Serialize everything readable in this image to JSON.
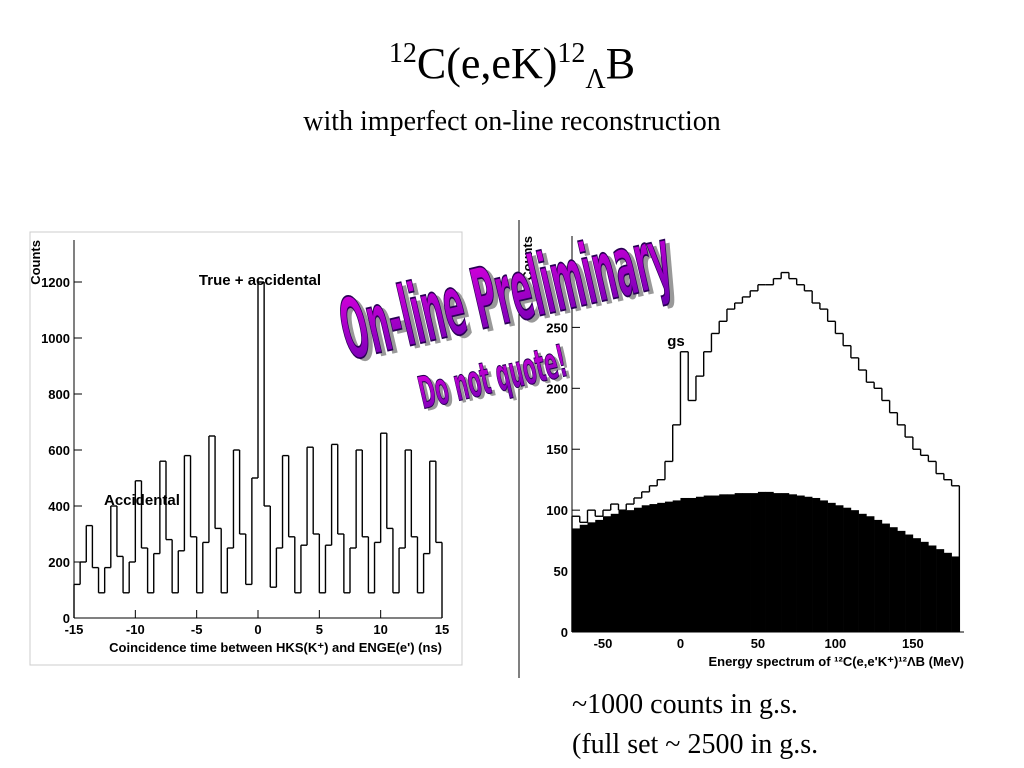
{
  "slide": {
    "title": [
      "12",
      "C(e,eK)",
      "12",
      "Λ",
      "B"
    ],
    "subtitle": "with imperfect on-line reconstruction",
    "watermark": [
      "On-line Preliminary",
      "Do not quote!"
    ],
    "notes": [
      "~1000 counts in g.s.",
      "(full set ~ 2500 in g.s."
    ]
  },
  "chart_data": [
    {
      "type": "histogram",
      "x_label": "Coincidence time between HKS(K⁺) and ENGE(e') (ns)",
      "y_label": "Counts",
      "annotations": [
        "True + accidental",
        "Accidental"
      ],
      "bins": [
        -15,
        -14.5,
        -14,
        -13.5,
        -13,
        -12.5,
        -12,
        -11.5,
        -11,
        -10.5,
        -10,
        -9.5,
        -9,
        -8.5,
        -8,
        -7.5,
        -7,
        -6.5,
        -6,
        -5.5,
        -5,
        -4.5,
        -4,
        -3.5,
        -3,
        -2.5,
        -2,
        -1.5,
        -1,
        -0.5,
        0,
        0.5,
        1,
        1.5,
        2,
        2.5,
        3,
        3.5,
        4,
        4.5,
        5,
        5.5,
        6,
        6.5,
        7,
        7.5,
        8,
        8.5,
        9,
        9.5,
        10,
        10.5,
        11,
        11.5,
        12,
        12.5,
        13,
        13.5,
        14,
        14.5,
        15
      ],
      "series": [
        {
          "color": "#000000",
          "style": "step",
          "values": [
            120,
            200,
            330,
            180,
            90,
            180,
            400,
            220,
            90,
            200,
            490,
            250,
            90,
            230,
            560,
            280,
            90,
            240,
            580,
            290,
            90,
            270,
            650,
            320,
            90,
            250,
            600,
            300,
            120,
            500,
            1200,
            400,
            110,
            250,
            580,
            290,
            90,
            260,
            610,
            300,
            90,
            260,
            620,
            300,
            90,
            250,
            600,
            290,
            90,
            270,
            660,
            320,
            90,
            250,
            600,
            290,
            90,
            230,
            560,
            270
          ]
        }
      ],
      "xlim": [
        -15,
        15
      ],
      "xticks": [
        -15,
        -10,
        -5,
        0,
        5,
        10,
        15
      ],
      "ylim": [
        0,
        1350
      ],
      "yticks": [
        0,
        200,
        400,
        600,
        800,
        1000,
        1200
      ]
    },
    {
      "type": "histogram",
      "x_label": "Energy spectrum of ¹²C(e,e'K⁺)¹²ΛB (MeV)",
      "y_label": "Counts",
      "annotations": [
        "gs"
      ],
      "bins": [
        -70,
        -65,
        -60,
        -55,
        -50,
        -45,
        -40,
        -35,
        -30,
        -25,
        -20,
        -15,
        -10,
        -5,
        0,
        5,
        10,
        15,
        20,
        25,
        30,
        35,
        40,
        45,
        50,
        55,
        60,
        65,
        70,
        75,
        80,
        85,
        90,
        95,
        100,
        105,
        110,
        115,
        120,
        125,
        130,
        135,
        140,
        145,
        150,
        155,
        160,
        165,
        170,
        175,
        180
      ],
      "series": [
        {
          "color": "#000000",
          "style": "filled",
          "values": [
            85,
            88,
            90,
            92,
            95,
            97,
            100,
            100,
            102,
            104,
            105,
            106,
            107,
            108,
            110,
            110,
            111,
            112,
            112,
            113,
            113,
            114,
            114,
            114,
            115,
            115,
            114,
            114,
            113,
            112,
            111,
            110,
            108,
            106,
            104,
            102,
            100,
            97,
            95,
            92,
            89,
            86,
            83,
            80,
            77,
            74,
            71,
            68,
            65,
            62
          ]
        },
        {
          "color": "#000000",
          "style": "step",
          "values": [
            95,
            90,
            100,
            95,
            100,
            105,
            100,
            105,
            110,
            115,
            120,
            125,
            140,
            170,
            230,
            190,
            210,
            230,
            245,
            255,
            265,
            270,
            275,
            280,
            285,
            285,
            290,
            295,
            290,
            285,
            280,
            270,
            265,
            255,
            245,
            235,
            225,
            215,
            205,
            200,
            190,
            180,
            170,
            160,
            150,
            145,
            140,
            130,
            125,
            120
          ]
        }
      ],
      "xlim": [
        -70,
        183
      ],
      "xticks": [
        -50,
        0,
        50,
        100,
        150
      ],
      "ylim": [
        0,
        325
      ],
      "yticks": [
        0,
        50,
        100,
        150,
        200,
        250
      ]
    }
  ]
}
